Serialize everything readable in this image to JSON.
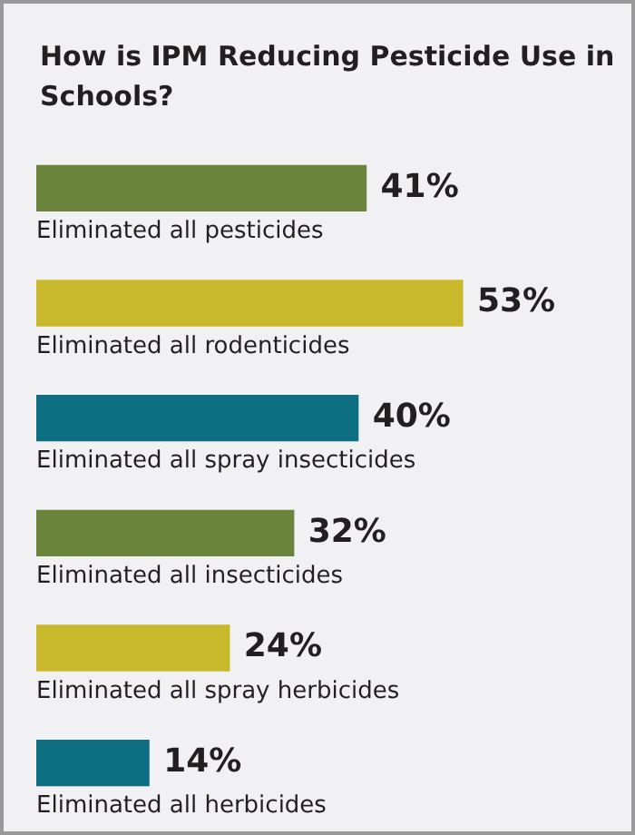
{
  "chart_data": {
    "type": "bar",
    "orientation": "horizontal",
    "title": "How is IPM Reducing Pesticide Use in Schools?",
    "categories": [
      "Eliminated all pesticides",
      "Eliminated all rodenticides",
      "Eliminated all spray insecticides",
      "Eliminated all insecticides",
      "Eliminated all spray herbicides",
      "Eliminated all herbicides"
    ],
    "values": [
      41,
      53,
      40,
      32,
      24,
      14
    ],
    "colors": [
      "#6b843c",
      "#c8b92c",
      "#0e6e82",
      "#6b843c",
      "#c8b92c",
      "#0e6e82"
    ],
    "value_labels": [
      "41%",
      "53%",
      "40%",
      "32%",
      "24%",
      "14%"
    ]
  }
}
